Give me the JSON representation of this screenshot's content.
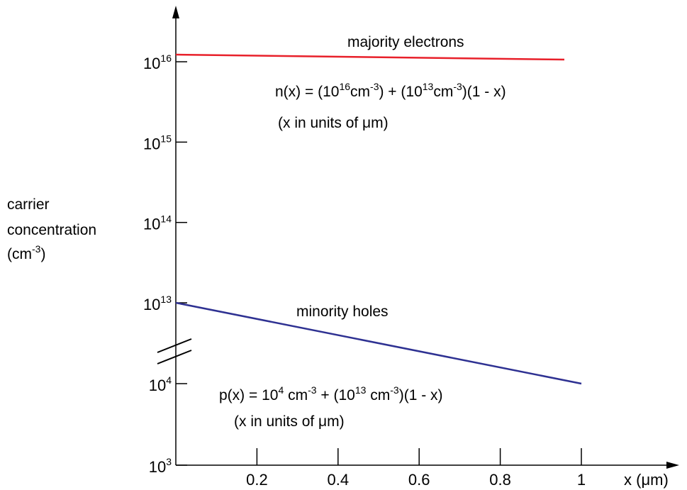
{
  "chart_data": {
    "type": "line",
    "xlabel": "x (μm)",
    "ylabel": [
      "carrier",
      "concentration",
      "(cm-3)"
    ],
    "x_ticks": [
      {
        "value": 0.2,
        "label": "0.2"
      },
      {
        "value": 0.4,
        "label": "0.4"
      },
      {
        "value": 0.6,
        "label": "0.6"
      },
      {
        "value": 0.8,
        "label": "0.8"
      },
      {
        "value": 1,
        "label": "1"
      }
    ],
    "xlim": [
      0,
      1.1
    ],
    "y_scale": "log (broken axis between 10^4 and 10^13)",
    "y_ticks": [
      {
        "base": "10",
        "exp": "3",
        "value": 1000.0
      },
      {
        "base": "10",
        "exp": "4",
        "value": 10000.0
      },
      {
        "base": "10",
        "exp": "13",
        "value": 10000000000000.0
      },
      {
        "base": "10",
        "exp": "14",
        "value": 100000000000000.0
      },
      {
        "base": "10",
        "exp": "15",
        "value": 1000000000000000.0
      },
      {
        "base": "10",
        "exp": "16",
        "value": 1e+16
      }
    ],
    "series": [
      {
        "name": "majority electrons",
        "color": "#e8202a",
        "x": [
          0,
          0.96
        ],
        "y": [
          1.001e+16,
          1.00004e+16
        ]
      },
      {
        "name": "minority holes",
        "color": "#2e3192",
        "x": [
          0,
          1
        ],
        "y": [
          10000000000000.0,
          10000.0
        ]
      }
    ],
    "annotations": {
      "majority_formula": {
        "n_prefix": "n(x) = (10",
        "n_exp1": "16",
        "n_mid1": "cm",
        "n_exp2": "-3",
        "n_mid2": ") + (10",
        "n_exp3": "13",
        "n_mid3": "cm",
        "n_exp4": "-3",
        "n_suffix": ")(1 - x)"
      },
      "majority_units": "(x in units of μm)",
      "minority_formula": {
        "p_prefix": "p(x) = 10",
        "p_exp1": "4",
        "p_mid1": " cm",
        "p_exp2": "-3",
        "p_mid2": " + (10",
        "p_exp3": "13",
        "p_mid3": " cm",
        "p_exp4": "-3",
        "p_suffix": ")(1 - x)"
      },
      "minority_units": "(x in units of μm)"
    }
  }
}
